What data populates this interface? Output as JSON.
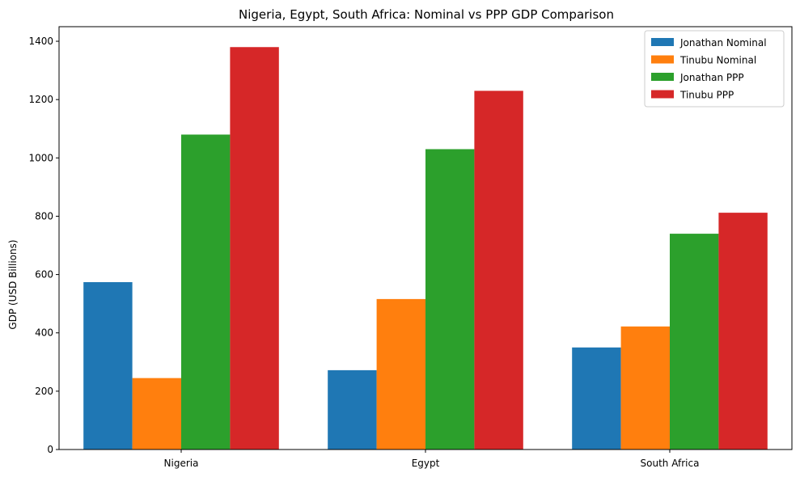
{
  "chart_data": {
    "type": "bar",
    "title": "Nigeria, Egypt, South Africa: Nominal vs PPP GDP Comparison",
    "xlabel": "",
    "ylabel": "GDP (USD Billions)",
    "categories": [
      "Nigeria",
      "Egypt",
      "South Africa"
    ],
    "series": [
      {
        "name": "Jonathan Nominal",
        "color": "#1f77b4",
        "values": [
          574,
          272,
          350
        ]
      },
      {
        "name": "Tinubu Nominal",
        "color": "#ff7f0e",
        "values": [
          245,
          516,
          422
        ]
      },
      {
        "name": "Jonathan PPP",
        "color": "#2ca02c",
        "values": [
          1080,
          1030,
          740
        ]
      },
      {
        "name": "Tinubu PPP",
        "color": "#d62728",
        "values": [
          1380,
          1230,
          812
        ]
      }
    ],
    "ylim": [
      0,
      1450
    ],
    "yticks": [
      0,
      200,
      400,
      600,
      800,
      1000,
      1200,
      1400
    ],
    "grid": false,
    "legend_position": "top-right"
  }
}
